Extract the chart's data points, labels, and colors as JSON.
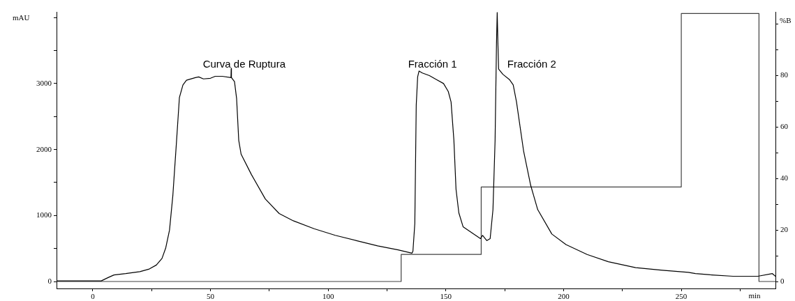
{
  "chart_data": {
    "type": "line",
    "ylabel": "mAU",
    "y2label": "%B",
    "xlabel": "min",
    "xlim": [
      -15.4,
      290
    ],
    "xticks": [
      0,
      {
        "value": 25,
        "label": null
      },
      50,
      {
        "value": 75,
        "label": null
      },
      100,
      {
        "value": 125,
        "label": null
      },
      150,
      {
        "value": 175,
        "label": null
      },
      200,
      {
        "value": 225,
        "label": null
      },
      250,
      {
        "value": 275,
        "label": null
      }
    ],
    "ylim": [
      -105,
      4080
    ],
    "yticks": [
      0,
      {
        "value": 500,
        "label": null
      },
      1000,
      {
        "value": 1500,
        "label": null
      },
      2000,
      {
        "value": 2500,
        "label": null
      },
      3000,
      {
        "value": 3500,
        "label": null
      },
      {
        "value": 4000,
        "label": null
      }
    ],
    "y2lim": [
      -2.7,
      104.5
    ],
    "y2ticks": [
      0,
      {
        "value": 10,
        "label": null
      },
      20,
      {
        "value": 30,
        "label": null
      },
      40,
      {
        "value": 50,
        "label": null
      },
      60,
      {
        "value": 70,
        "label": null
      },
      80,
      {
        "value": 90,
        "label": null
      },
      {
        "value": 100,
        "label": null
      }
    ],
    "grid": false,
    "legend": false,
    "marker": "none",
    "line_style": "solid",
    "series": [
      {
        "type": "line",
        "color": "#000000",
        "x": [
          -15.4,
          3.6,
          6.5,
          9,
          14,
          20,
          24,
          27,
          29.4,
          31,
          32.6,
          34,
          35.6,
          36.8,
          38.3,
          39.8,
          43.6,
          45,
          47,
          50,
          52,
          55,
          58.7,
          58.8,
          58.9,
          60.2,
          61.1,
          62,
          63,
          67.4,
          73.3,
          79.2,
          85.2,
          94,
          103,
          112,
          121,
          129.7,
          135.6,
          136,
          136.8,
          137.4,
          138,
          138.6,
          140,
          143,
          146,
          149,
          151,
          152.2,
          153.4,
          154.3,
          155.5,
          157.3,
          161,
          164.7,
          165.6,
          167.4,
          168.8,
          170,
          170.9,
          171.5,
          171.8,
          172.1,
          172.4,
          174.2,
          177,
          178.6,
          180,
          183,
          186,
          189,
          195,
          201,
          210,
          219,
          230.6,
          242,
          253,
          256,
          263,
          272,
          282.5,
          288.7,
          290
        ],
        "values": [
          10,
          10,
          60,
          100,
          120,
          150,
          190,
          250,
          350,
          510,
          780,
          1300,
          2140,
          2790,
          2980,
          3050,
          3090,
          3100,
          3070,
          3080,
          3110,
          3110,
          3090,
          3230,
          3090,
          3030,
          2770,
          2140,
          1930,
          1620,
          1250,
          1030,
          920,
          800,
          700,
          620,
          540,
          480,
          430,
          460,
          880,
          2670,
          3100,
          3190,
          3160,
          3120,
          3060,
          3000,
          2880,
          2720,
          2140,
          1400,
          1040,
          830,
          740,
          650,
          700,
          620,
          650,
          1090,
          2140,
          3610,
          4080,
          3610,
          3220,
          3140,
          3060,
          2980,
          2720,
          1980,
          1460,
          1090,
          720,
          560,
          410,
          300,
          210,
          170,
          140,
          120,
          100,
          80,
          80,
          120,
          80
        ]
      },
      {
        "type": "step",
        "axis": "y2",
        "color": "#404040",
        "x": [
          -15.4,
          131,
          165,
          250,
          283,
          290
        ],
        "values": [
          0,
          10.5,
          36.7,
          104,
          0,
          0
        ]
      }
    ],
    "annotations": [
      "Curva de Ruptura",
      "Fracción 1",
      "Fracción 2"
    ]
  }
}
